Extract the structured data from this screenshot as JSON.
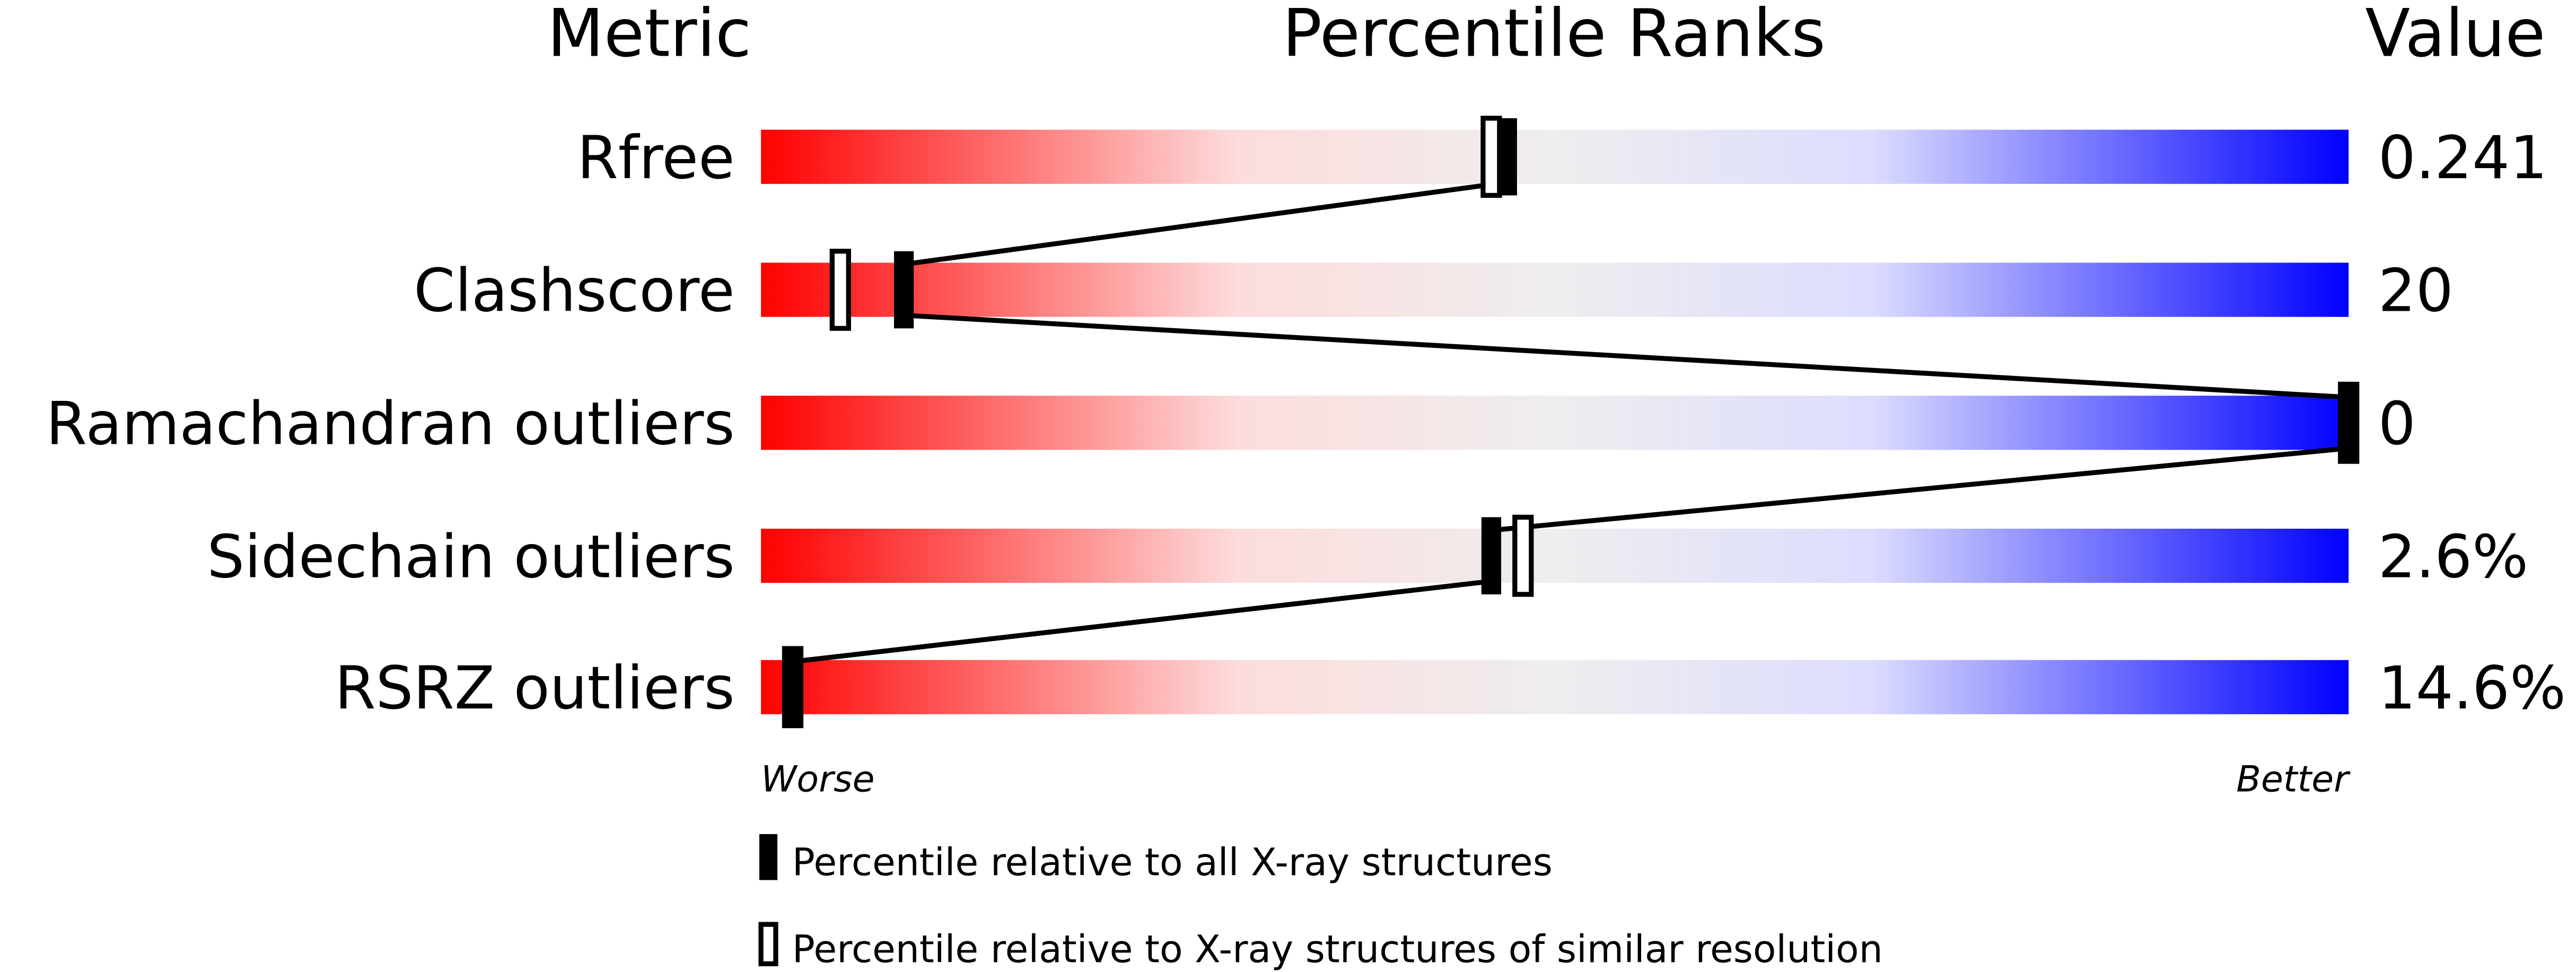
{
  "chart_data": {
    "type": "percentile-slider",
    "headers": {
      "metric": "Metric",
      "ranks": "Percentile Ranks",
      "value": "Value"
    },
    "xlim": [
      0,
      100
    ],
    "scale_labels": {
      "left": "Worse",
      "right": "Better"
    },
    "gradient_colors": [
      "#ff0000",
      "#fddcdc",
      "#eeeeee",
      "#dcdcff",
      "#0000ff"
    ],
    "rows": [
      {
        "metric": "Rfree",
        "value": "0.241",
        "percentile_all": 47,
        "percentile_similar": 46
      },
      {
        "metric": "Clashscore",
        "value": "20",
        "percentile_all": 9,
        "percentile_similar": 5
      },
      {
        "metric": "Ramachandran outliers",
        "value": "0",
        "percentile_all": 100,
        "percentile_similar": 100
      },
      {
        "metric": "Sidechain outliers",
        "value": "2.6%",
        "percentile_all": 46,
        "percentile_similar": 48
      },
      {
        "metric": "RSRZ outliers",
        "value": "14.6%",
        "percentile_all": 2,
        "percentile_similar": 2
      }
    ],
    "legend": [
      {
        "marker": "filled",
        "label": "Percentile relative to all X-ray structures"
      },
      {
        "marker": "open",
        "label": "Percentile relative to X-ray structures of similar resolution"
      }
    ]
  }
}
